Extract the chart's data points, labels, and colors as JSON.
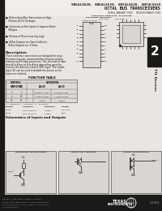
{
  "title_line1": "SN54LS638, SN54LS639, SN74LS638, SN74LS639",
  "title_line2": "OCTAL BUS TRANSCEIVERS",
  "subtitle": "D2856, JANUARY 1980  -  REVISED MARCH 1988",
  "bg_color": "#e8e6e2",
  "left_bar_color": "#1a1a1a",
  "tab_color": "#1a1a1a",
  "tab_text": "2",
  "sidebar_text": "TTL Devices",
  "footer_bg": "#1a1a1a",
  "footer_text_color": "#aaaaaa",
  "ti_logo_text": "TEXAS\nINSTRUMENTS",
  "page_number": "2-1263",
  "content_bg": "#d8d6d2",
  "white": "#f0eeea",
  "pin_bg": "#dddbd7",
  "schema_bg": "#d8d6d2"
}
